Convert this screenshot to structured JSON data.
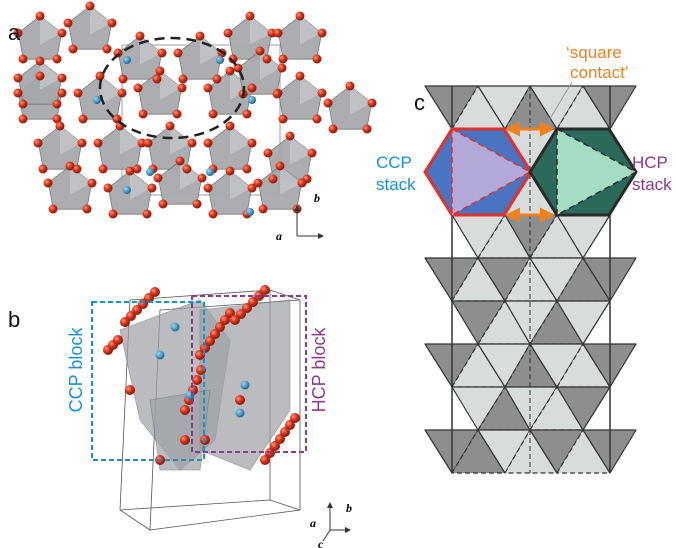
{
  "panel_a": {
    "label": "a",
    "axis_labels": {
      "vertical": "b",
      "horizontal": "a"
    }
  },
  "panel_b": {
    "label": "b",
    "ccp_block": "CCP block",
    "hcp_block": "HCP block",
    "axis_labels": {
      "vertical": "b",
      "horizontal": "a",
      "depth": "c"
    }
  },
  "panel_c": {
    "label": "c",
    "square_contact": [
      "‘square",
      "contact’"
    ],
    "ccp_stack": [
      "CCP",
      "stack"
    ],
    "hcp_stack": [
      "HCP",
      "stack"
    ]
  }
}
